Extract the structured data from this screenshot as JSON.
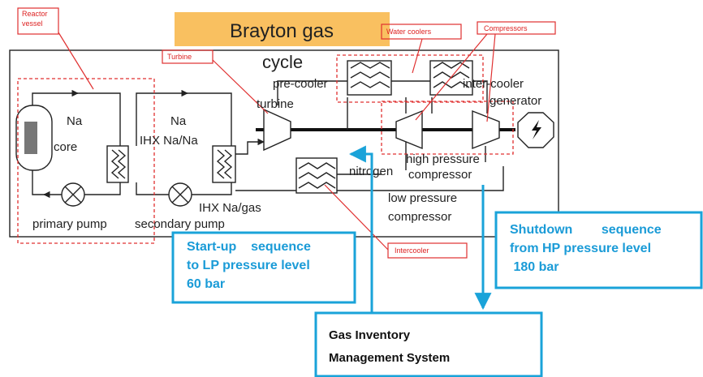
{
  "title": {
    "line1": "Brayton gas",
    "line2": "cycle"
  },
  "callouts": {
    "reactor_vessel": [
      "Reactor",
      "vessel"
    ],
    "turbine": "Turbine",
    "water_coolers": "Water coolers",
    "compressors": "Compressors",
    "intercooler": "Intercooler"
  },
  "components": {
    "na1": "Na",
    "core": "core",
    "na2": "Na",
    "ihx_na_na": "IHX Na/Na",
    "ihx_na_gas": "IHX Na/gas",
    "primary_pump": "primary pump",
    "secondary_pump": "secondary pump",
    "pre_cooler": "pre-cooler",
    "turbine": "turbine",
    "inter_cooler": "inter-cooler",
    "generator": "generator",
    "nitrogen": "nitrogen",
    "hp_compressor": [
      "high pressure",
      "compressor"
    ],
    "lp_compressor": [
      "low pressure",
      "compressor"
    ]
  },
  "boxes": {
    "startup": [
      "Start-up    sequence",
      "to LP pressure level",
      "60 bar"
    ],
    "shutdown": [
      "Shutdown        sequence",
      "from HP pressure level",
      " 180 bar"
    ],
    "gims": [
      "Gas Inventory",
      "Management System"
    ]
  }
}
